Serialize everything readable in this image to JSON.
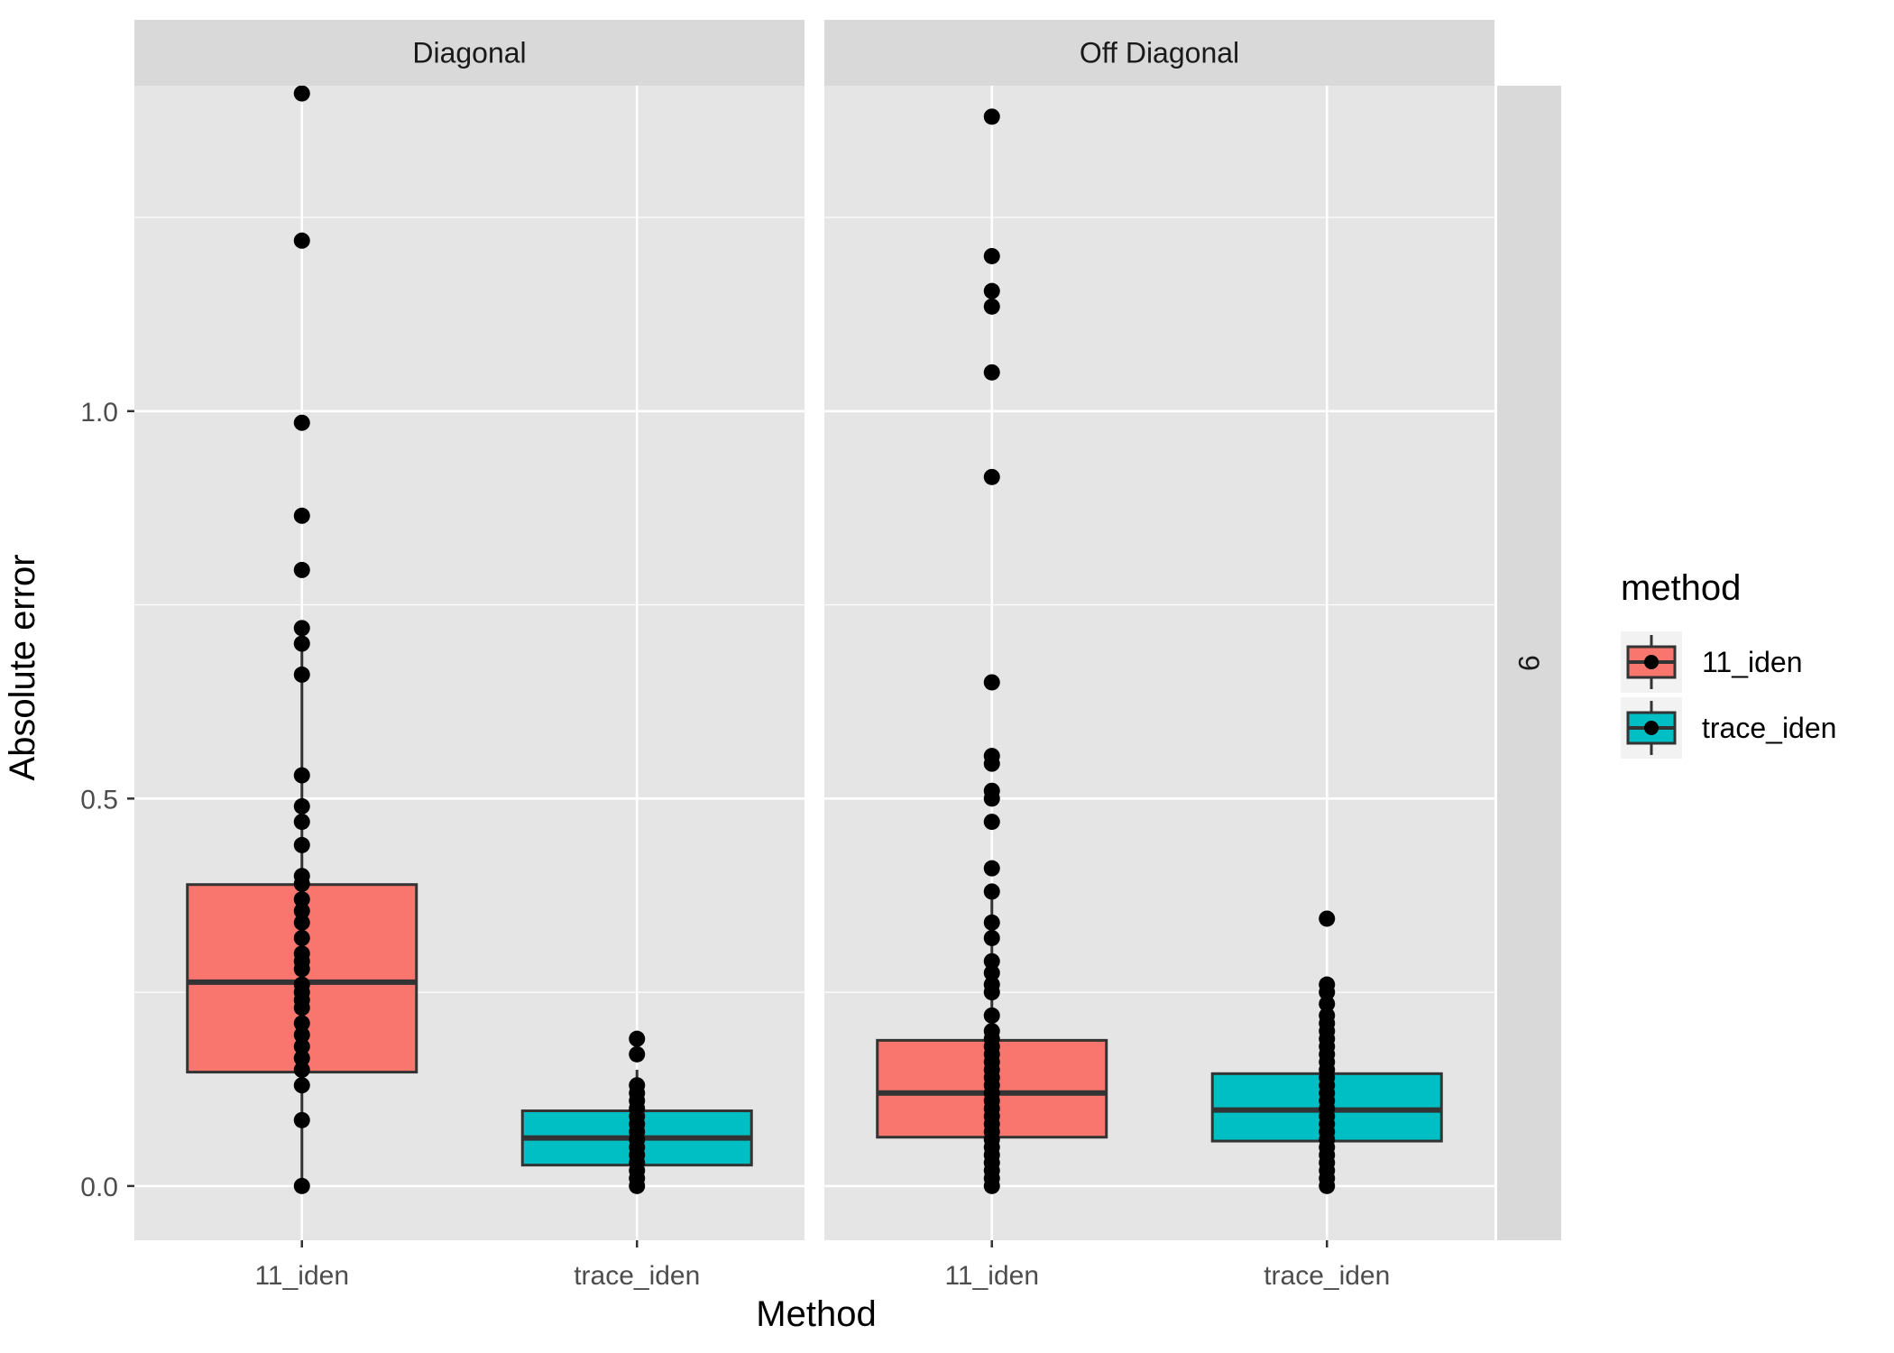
{
  "chart_data": {
    "type": "box",
    "xlabel": "Method",
    "ylabel": "Absolute error",
    "ylim": [
      -0.07,
      1.42
    ],
    "yticks": [
      0.0,
      0.5,
      1.0
    ],
    "ytick_labels": [
      "0.0",
      "0.5",
      "1.0"
    ],
    "categories": [
      "11_iden",
      "trace_iden"
    ],
    "row_strip": "9",
    "legend": {
      "title": "method",
      "entries": [
        {
          "label": "11_iden",
          "color": "#F8766D"
        },
        {
          "label": "trace_iden",
          "color": "#00BFC4"
        }
      ]
    },
    "colors": {
      "11_iden": "#F8766D",
      "trace_iden": "#00BFC4",
      "panel_bg": "#E5E5E5",
      "strip_bg": "#D9D9D9",
      "grid": "#FFFFFF",
      "outline": "#333333",
      "point": "#000000"
    },
    "facets": [
      {
        "label": "Diagonal",
        "boxes": [
          {
            "method": "11_iden",
            "q1": 0.147,
            "median": 0.263,
            "q3": 0.389,
            "whisker_low": 0.0,
            "whisker_high": 0.725,
            "points": [
              1.41,
              1.22,
              0.985,
              0.865,
              0.795,
              0.72,
              0.7,
              0.66,
              0.53,
              0.49,
              0.47,
              0.44,
              0.4,
              0.39,
              0.37,
              0.355,
              0.34,
              0.32,
              0.3,
              0.29,
              0.28,
              0.26,
              0.25,
              0.24,
              0.23,
              0.21,
              0.195,
              0.18,
              0.165,
              0.15,
              0.13,
              0.085,
              0.0
            ]
          },
          {
            "method": "trace_iden",
            "q1": 0.027,
            "median": 0.062,
            "q3": 0.097,
            "whisker_low": 0.0,
            "whisker_high": 0.15,
            "points": [
              0.19,
              0.17,
              0.13,
              0.12,
              0.11,
              0.1,
              0.09,
              0.08,
              0.07,
              0.06,
              0.05,
              0.04,
              0.03,
              0.02,
              0.01,
              0.0
            ]
          }
        ]
      },
      {
        "label": "Off Diagonal",
        "boxes": [
          {
            "method": "11_iden",
            "q1": 0.063,
            "median": 0.12,
            "q3": 0.188,
            "whisker_low": 0.0,
            "whisker_high": 0.37,
            "points": [
              1.38,
              1.2,
              1.155,
              1.135,
              1.05,
              0.915,
              0.65,
              0.555,
              0.545,
              0.51,
              0.5,
              0.47,
              0.41,
              0.38,
              0.34,
              0.32,
              0.29,
              0.275,
              0.26,
              0.25,
              0.22,
              0.2,
              0.19,
              0.18,
              0.17,
              0.16,
              0.15,
              0.14,
              0.13,
              0.12,
              0.11,
              0.1,
              0.09,
              0.08,
              0.07,
              0.06,
              0.05,
              0.04,
              0.03,
              0.02,
              0.01,
              0.0
            ]
          },
          {
            "method": "trace_iden",
            "q1": 0.058,
            "median": 0.098,
            "q3": 0.145,
            "whisker_low": 0.0,
            "whisker_high": 0.265,
            "points": [
              0.345,
              0.26,
              0.25,
              0.235,
              0.22,
              0.21,
              0.2,
              0.19,
              0.18,
              0.17,
              0.16,
              0.15,
              0.14,
              0.13,
              0.12,
              0.11,
              0.1,
              0.09,
              0.08,
              0.07,
              0.06,
              0.05,
              0.04,
              0.03,
              0.02,
              0.01,
              0.0
            ]
          }
        ]
      }
    ]
  }
}
